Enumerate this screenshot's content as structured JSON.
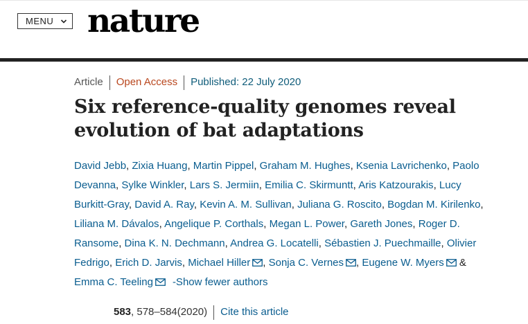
{
  "header": {
    "menu_label": "MENU",
    "logo_text": "nature"
  },
  "article": {
    "type": "Article",
    "access": "Open Access",
    "published": "Published: 22 July 2020",
    "title": "Six reference-quality genomes reveal evolution of bat adaptations"
  },
  "authors": [
    {
      "name": "David Jebb",
      "mail": false
    },
    {
      "name": "Zixia Huang",
      "mail": false
    },
    {
      "name": "Martin Pippel",
      "mail": false
    },
    {
      "name": "Graham M. Hughes",
      "mail": false
    },
    {
      "name": "Ksenia Lavrichenko",
      "mail": false
    },
    {
      "name": "Paolo Devanna",
      "mail": false
    },
    {
      "name": "Sylke Winkler",
      "mail": false
    },
    {
      "name": "Lars S. Jermiin",
      "mail": false
    },
    {
      "name": "Emilia C. Skirmuntt",
      "mail": false
    },
    {
      "name": "Aris Katzourakis",
      "mail": false
    },
    {
      "name": "Lucy Burkitt-Gray",
      "mail": false
    },
    {
      "name": "David A. Ray",
      "mail": false
    },
    {
      "name": "Kevin A. M. Sullivan",
      "mail": false
    },
    {
      "name": "Juliana G. Roscito",
      "mail": false
    },
    {
      "name": "Bogdan M. Kirilenko",
      "mail": false
    },
    {
      "name": "Liliana M. Dávalos",
      "mail": false
    },
    {
      "name": "Angelique P. Corthals",
      "mail": false
    },
    {
      "name": "Megan L. Power",
      "mail": false
    },
    {
      "name": "Gareth Jones",
      "mail": false
    },
    {
      "name": "Roger D. Ransome",
      "mail": false
    },
    {
      "name": "Dina K. N. Dechmann",
      "mail": false
    },
    {
      "name": "Andrea G. Locatelli",
      "mail": false
    },
    {
      "name": "Sébastien J. Puechmaille",
      "mail": false
    },
    {
      "name": "Olivier Fedrigo",
      "mail": false
    },
    {
      "name": "Erich D. Jarvis",
      "mail": false
    },
    {
      "name": "Michael Hiller",
      "mail": true
    },
    {
      "name": "Sonja C. Vernes",
      "mail": true
    },
    {
      "name": "Eugene W. Myers",
      "mail": true
    },
    {
      "name": "Emma C. Teeling",
      "mail": true
    }
  ],
  "authors_ampersand": "&",
  "show_fewer_label": "-Show fewer authors",
  "citation": {
    "volume": "583",
    "pages_year": ", 578–584(2020)",
    "cite_label": "Cite this article"
  },
  "colors": {
    "link": "#0a5d8f",
    "open_access": "#b9471e",
    "rule": "#222222"
  }
}
